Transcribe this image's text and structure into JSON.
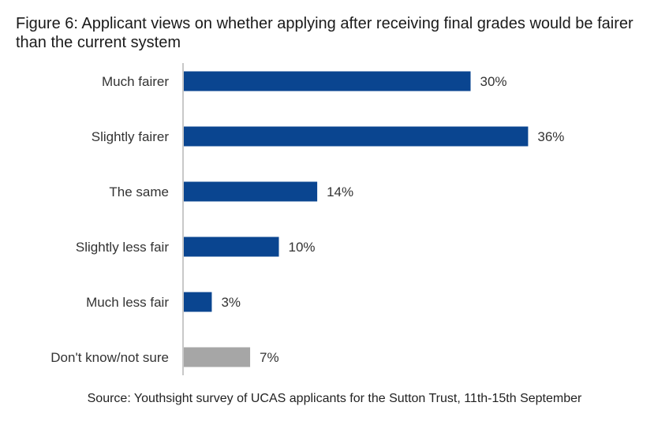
{
  "title": "Figure 6: Applicant views on whether applying after receiving final grades would be fairer than the current system",
  "source": "Source: Youthsight survey of UCAS applicants for the Sutton Trust, 11th-15th September",
  "colors": {
    "primary": "#0a4590",
    "neutral": "#a6a6a6",
    "axis": "#c8c8c8"
  },
  "chart_data": {
    "type": "bar",
    "orientation": "horizontal",
    "categories": [
      "Much fairer",
      "Slightly fairer",
      "The same",
      "Slightly less fair",
      "Much less fair",
      "Don't know/not sure"
    ],
    "values": [
      30,
      36,
      14,
      10,
      3,
      7
    ],
    "value_labels": [
      "30%",
      "36%",
      "14%",
      "10%",
      "3%",
      "7%"
    ],
    "highlight": [
      "primary",
      "primary",
      "primary",
      "primary",
      "primary",
      "neutral"
    ],
    "xlim": [
      0,
      40
    ],
    "grid": false,
    "legend": "none"
  }
}
